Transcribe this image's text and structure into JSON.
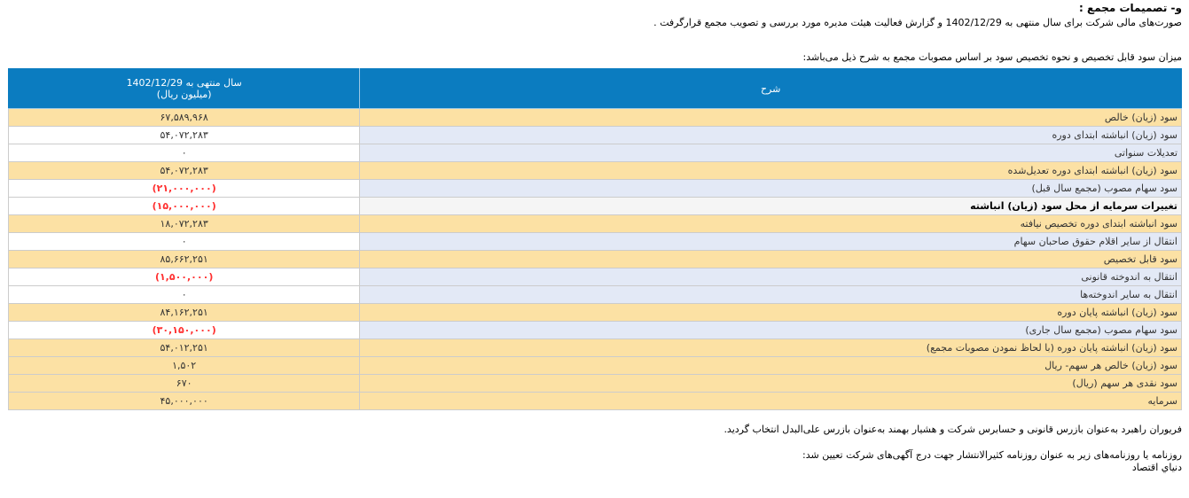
{
  "page": {
    "section_title": "و- تصمیمات مجمع :",
    "statements_paragraph": "صورت‌های مالی شرکت برای سال منتهی به  1402/12/29 و گزارش فعالیت هیئت مدیره مورد بررسی و تصویب مجمع قرارگرفت .",
    "allocation_paragraph": "میزان سود قابل تخصیص و نحوه تخصیص سود بر اساس مصوبات مجمع به شرح ذیل می‌باشد:"
  },
  "table": {
    "header": {
      "value_column_line1": "سال منتهی به 1402/12/29",
      "value_column_line2": "(میلیون ریال)",
      "description_column": "شرح"
    },
    "rows": [
      {
        "label": "سود (زیان) خالص",
        "value": "۶۷,۵۸۹,۹۶۸",
        "style": "yellow",
        "negative": false
      },
      {
        "label": "سود (زیان) انباشته ابتدای دوره",
        "value": "۵۴,۰۷۲,۲۸۳",
        "style": "alt",
        "negative": false
      },
      {
        "label": "تعدیلات سنواتی",
        "value": "۰",
        "style": "alt",
        "negative": false
      },
      {
        "label": "سود (زیان) انباشته ابتدای دوره تعدیل‌شده",
        "value": "۵۴,۰۷۲,۲۸۳",
        "style": "yellow",
        "negative": false
      },
      {
        "label": "سود سهام مصوب (مجمع سال قبل)",
        "value": "(۲۱,۰۰۰,۰۰۰)",
        "style": "alt",
        "negative": true
      },
      {
        "label": "تغییرات سرمایه از محل سود (زیان) انباشته",
        "value": "(۱۵,۰۰۰,۰۰۰)",
        "style": "emphasis",
        "negative": true
      },
      {
        "label": "سود انباشته ابتدای دوره تخصیص نیافته",
        "value": "۱۸,۰۷۲,۲۸۳",
        "style": "yellow",
        "negative": false
      },
      {
        "label": "انتقال از سایر اقلام حقوق صاحبان سهام",
        "value": "۰",
        "style": "alt",
        "negative": false
      },
      {
        "label": "سود قابل تخصیص",
        "value": "۸۵,۶۶۲,۲۵۱",
        "style": "yellow",
        "negative": false
      },
      {
        "label": "انتقال به اندوخته قانونی",
        "value": "(۱,۵۰۰,۰۰۰)",
        "style": "alt",
        "negative": true
      },
      {
        "label": "انتقال به سایر اندوخته‌ها",
        "value": "۰",
        "style": "alt",
        "negative": false
      },
      {
        "label": "سود (زیان) انباشته پایان دوره",
        "value": "۸۴,۱۶۲,۲۵۱",
        "style": "yellow",
        "negative": false
      },
      {
        "label": "سود سهام مصوب (مجمع سال جاری)",
        "value": "(۳۰,۱۵۰,۰۰۰)",
        "style": "alt",
        "negative": true
      },
      {
        "label": "سود (زیان) انباشته پایان دوره (با لحاظ نمودن مصوبات مجمع)",
        "value": "۵۴,۰۱۲,۲۵۱",
        "style": "yellow",
        "negative": false
      },
      {
        "label": "سود (زیان) خالص هر سهم- ریال",
        "value": "۱,۵۰۲",
        "style": "yellow",
        "negative": false
      },
      {
        "label": "سود نقدی هر سهم (ریال)",
        "value": "۶۷۰",
        "style": "yellow",
        "negative": false
      },
      {
        "label": "سرمایه",
        "value": "۴۵,۰۰۰,۰۰۰",
        "style": "yellow",
        "negative": false
      }
    ]
  },
  "footer": {
    "auditor_line": "فریوران راهبرد  به‌عنوان بازرس قانونی و حسابرس شرکت و  هشیار بهمند  به‌عنوان بازرس علی‌البدل انتخاب گردید.",
    "newspaper_intro": "روزنامه یا روزنامه‌های زیر به عنوان روزنامه کثیرالانتشار جهت درج آگهی‌های شرکت تعیین شد:",
    "newspaper_name": "دنیاي اقتصاد"
  },
  "colors": {
    "header_blue": "#0b7cc0",
    "row_yellow": "#fce1a4",
    "row_lavender": "#e3e9f6",
    "row_emphasis_gray": "#f5f5f5",
    "negative_red": "#ff3030",
    "border_gray": "#cccccc"
  }
}
